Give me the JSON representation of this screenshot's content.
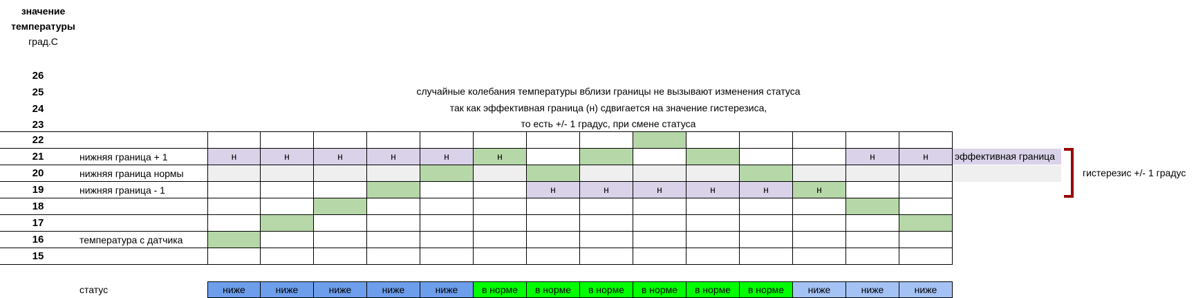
{
  "header": {
    "line1": "значение",
    "line2": "температуры",
    "unit": "град.С"
  },
  "notes": [
    "случайные колебания температуры вблизи границы не вызывают изменения статуса",
    "так как эффективная граница (н) сдвигается на значение гистерезиса,",
    "то есть +/- 1 градус, при смене статуса"
  ],
  "rows": [
    26,
    25,
    24,
    23,
    22,
    21,
    20,
    19,
    18,
    17,
    16,
    15
  ],
  "row_labels": {
    "21": "нижняя граница + 1",
    "20": "нижняя граница нормы",
    "19": "нижняя граница - 1",
    "16": "температура с датчика"
  },
  "status_label": "статус",
  "boundary_mark": "н",
  "sensor_temps": [
    16,
    17,
    18,
    19,
    20,
    21,
    20,
    21,
    22,
    21,
    20,
    19,
    18,
    17
  ],
  "effective_boundary": [
    21,
    21,
    21,
    21,
    21,
    21,
    19,
    19,
    19,
    19,
    19,
    19,
    21,
    21
  ],
  "status": [
    "ниже",
    "ниже",
    "ниже",
    "ниже",
    "ниже",
    "в норме",
    "в норме",
    "в норме",
    "в норме",
    "в норме",
    "в норме",
    "ниже",
    "ниже",
    "ниже"
  ],
  "effective_label": "эффективная граница",
  "hysteresis_label": "гистерезис +/- 1 градус",
  "colors": {
    "sensor": "#b6d7a8",
    "boundary": "#d9d2e9",
    "norm_row": "#efefef",
    "below_dark": "#6d9eeb",
    "below_light": "#a4c2f4",
    "normal": "#00ff00",
    "bracket": "#990000"
  }
}
